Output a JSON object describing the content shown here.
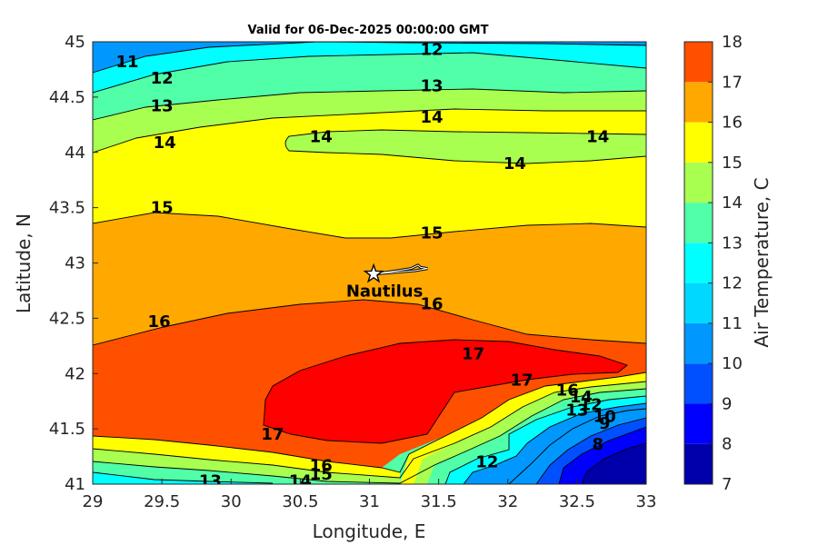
{
  "chart_data": {
    "type": "contour",
    "title": "Valid for 06-Dec-2025 00:00:00 GMT",
    "xlabel": "Longitude, E",
    "ylabel": "Latitude, N",
    "xlim": [
      29,
      33
    ],
    "ylim": [
      41,
      45
    ],
    "xticks": [
      "29",
      "29.5",
      "30",
      "30.5",
      "31",
      "31.5",
      "32",
      "32.5",
      "33"
    ],
    "yticks": [
      "41",
      "41.5",
      "42",
      "42.5",
      "43",
      "43.5",
      "44",
      "44.5",
      "45"
    ],
    "colorbar": {
      "label": "Air Temperature, C",
      "range": [
        7,
        18
      ],
      "ticks": [
        "7",
        "8",
        "9",
        "10",
        "11",
        "12",
        "13",
        "14",
        "15",
        "16",
        "17",
        "18"
      ],
      "colors": [
        "#0000aa",
        "#0000ff",
        "#0050ff",
        "#0098ff",
        "#00d8ff",
        "#00ffff",
        "#50ffa8",
        "#a8ff50",
        "#ffff00",
        "#ffa800",
        "#ff5000",
        "#ff0000"
      ]
    },
    "bands": [
      {
        "level": "11",
        "color": "#0098ff"
      },
      {
        "level": "12",
        "color": "#00ffff"
      },
      {
        "level": "13",
        "color": "#50ffa8"
      },
      {
        "level": "14",
        "color": "#a8ff50"
      },
      {
        "level": "15",
        "color": "#ffff00"
      },
      {
        "level": "16",
        "color": "#ffa800"
      },
      {
        "level": "17",
        "color": "#ff5000"
      },
      {
        "level": "17.5",
        "color": "#ff0000"
      },
      {
        "level": "low",
        "color": "#0000aa"
      }
    ],
    "contour_labels": [
      {
        "text": "11",
        "lon": 29.25,
        "lat": 44.82
      },
      {
        "text": "12",
        "lon": 29.5,
        "lat": 44.67
      },
      {
        "text": "13",
        "lon": 29.5,
        "lat": 44.42
      },
      {
        "text": "14",
        "lon": 29.52,
        "lat": 44.09
      },
      {
        "text": "12",
        "lon": 31.45,
        "lat": 44.93
      },
      {
        "text": "13",
        "lon": 31.45,
        "lat": 44.6
      },
      {
        "text": "14",
        "lon": 31.45,
        "lat": 44.32
      },
      {
        "text": "14",
        "lon": 30.65,
        "lat": 44.14
      },
      {
        "text": "14",
        "lon": 32.65,
        "lat": 44.14
      },
      {
        "text": "14",
        "lon": 32.05,
        "lat": 43.9
      },
      {
        "text": "15",
        "lon": 29.5,
        "lat": 43.5
      },
      {
        "text": "15",
        "lon": 31.45,
        "lat": 43.27
      },
      {
        "text": "16",
        "lon": 31.45,
        "lat": 42.63
      },
      {
        "text": "16",
        "lon": 29.48,
        "lat": 42.47
      },
      {
        "text": "17",
        "lon": 31.75,
        "lat": 42.18
      },
      {
        "text": "17",
        "lon": 32.1,
        "lat": 41.94
      },
      {
        "text": "17",
        "lon": 30.3,
        "lat": 41.45
      },
      {
        "text": "16",
        "lon": 30.65,
        "lat": 41.17
      },
      {
        "text": "15",
        "lon": 30.65,
        "lat": 41.09
      },
      {
        "text": "14",
        "lon": 30.5,
        "lat": 41.03
      },
      {
        "text": "13",
        "lon": 29.85,
        "lat": 41.03
      },
      {
        "text": "12",
        "lon": 31.85,
        "lat": 41.2
      },
      {
        "text": "16",
        "lon": 32.43,
        "lat": 41.85
      },
      {
        "text": "14",
        "lon": 32.53,
        "lat": 41.79
      },
      {
        "text": "12",
        "lon": 32.6,
        "lat": 41.72
      },
      {
        "text": "13",
        "lon": 32.5,
        "lat": 41.67
      },
      {
        "text": "10",
        "lon": 32.7,
        "lat": 41.61
      },
      {
        "text": "9",
        "lon": 32.7,
        "lat": 41.55
      },
      {
        "text": "8",
        "lon": 32.65,
        "lat": 41.36
      }
    ],
    "vessel": {
      "name": "Nautilus",
      "lon": 31.03,
      "lat": 42.9,
      "track": [
        [
          31.03,
          42.9
        ],
        [
          31.2,
          42.93
        ],
        [
          31.3,
          42.95
        ],
        [
          31.35,
          42.98
        ],
        [
          31.37,
          42.96
        ],
        [
          31.42,
          42.95
        ],
        [
          31.33,
          42.93
        ],
        [
          31.04,
          42.9
        ]
      ]
    }
  }
}
